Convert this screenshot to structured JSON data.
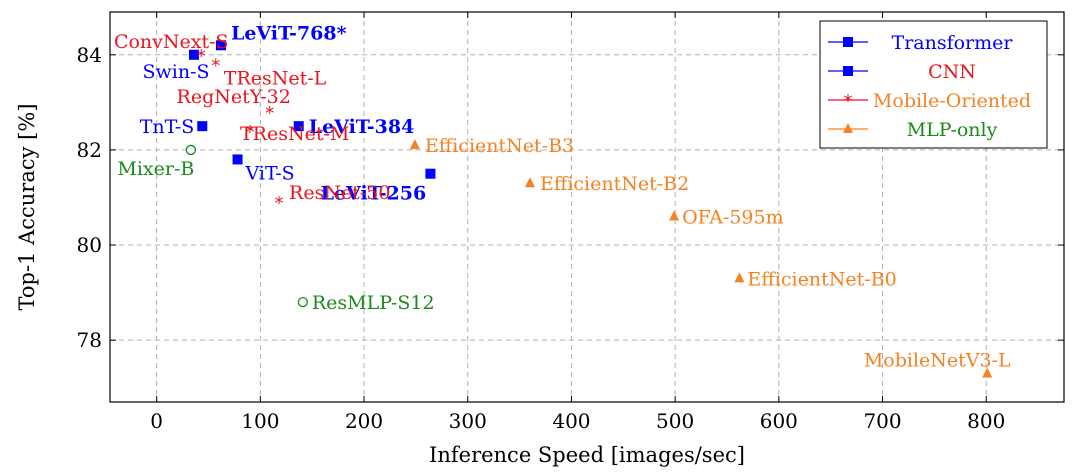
{
  "chart_data": {
    "type": "scatter",
    "title": "",
    "xlabel": "Inference Speed [images/sec]",
    "ylabel": "Top-1 Accuracy [%]",
    "xlim": [
      -45,
      875
    ],
    "ylim": [
      76.7,
      84.9
    ],
    "xticks": [
      0,
      100,
      200,
      300,
      400,
      500,
      600,
      700,
      800
    ],
    "yticks": [
      78,
      80,
      82,
      84
    ],
    "grid": true,
    "legend_position": "top-right",
    "series": [
      {
        "name": "Transformer",
        "color": "#0000ff",
        "marker": "square",
        "points": [
          {
            "label": "LeViT-768*",
            "x": 62,
            "y": 84.2,
            "bold": true
          },
          {
            "label": "Swin-S",
            "x": 36,
            "y": 84.0,
            "bold": false
          },
          {
            "label": "TnT-S",
            "x": 44,
            "y": 82.5,
            "bold": false
          },
          {
            "label": "LeViT-384",
            "x": 137,
            "y": 82.5,
            "bold": true
          },
          {
            "label": "ViT-S",
            "x": 78,
            "y": 81.8,
            "bold": false
          },
          {
            "label": "LeViT-256",
            "x": 264,
            "y": 81.5,
            "bold": true
          }
        ]
      },
      {
        "name": "CNN",
        "color": "#0000ff",
        "marker": "square",
        "points": []
      },
      {
        "name": "Mobile-Oriented",
        "color": "#e8141e",
        "marker": "star",
        "points": [
          {
            "label": "ConvNext-S",
            "x": 43,
            "y": 84.0,
            "bold": false
          },
          {
            "label": "TResNet-L",
            "x": 57,
            "y": 83.8,
            "bold": false
          },
          {
            "label": "RegNetY-32",
            "x": 109,
            "y": 82.8,
            "bold": false
          },
          {
            "label": "TResNet-M",
            "x": 90,
            "y": 82.4,
            "bold": false
          },
          {
            "label": "ResNet-50",
            "x": 118,
            "y": 80.9,
            "bold": false
          }
        ]
      },
      {
        "name": "MLP-only",
        "color": "#f58220",
        "marker": "triangle",
        "points": [
          {
            "label": "EfficientNet-B3",
            "x": 249,
            "y": 82.1,
            "bold": false
          },
          {
            "label": "EfficientNet-B2",
            "x": 360,
            "y": 81.3,
            "bold": false
          },
          {
            "label": "OFA-595m",
            "x": 499,
            "y": 80.6,
            "bold": false
          },
          {
            "label": "EfficientNet-B0",
            "x": 562,
            "y": 79.3,
            "bold": false
          },
          {
            "label": "MobileNetV3-L",
            "x": 801,
            "y": 77.3,
            "bold": false
          }
        ]
      },
      {
        "name": "",
        "color": "#1a8a1a",
        "marker": "circle-open",
        "points": [
          {
            "label": "Mixer-B",
            "x": 33,
            "y": 82.0,
            "bold": false
          },
          {
            "label": "ResMLP-S12",
            "x": 141,
            "y": 78.8,
            "bold": false
          }
        ]
      }
    ],
    "legend": [
      {
        "label": "Transformer",
        "color": "#0000ff",
        "marker": "square",
        "text_color": "#0000ff"
      },
      {
        "label": "CNN",
        "color": "#0000ff",
        "marker": "square",
        "text_color": "#e8141e"
      },
      {
        "label": "Mobile-Oriented",
        "color": "#e8141e",
        "marker": "star",
        "text_color": "#f58220"
      },
      {
        "label": "MLP-only",
        "color": "#f58220",
        "marker": "triangle",
        "text_color": "#1a8a1a"
      }
    ]
  }
}
